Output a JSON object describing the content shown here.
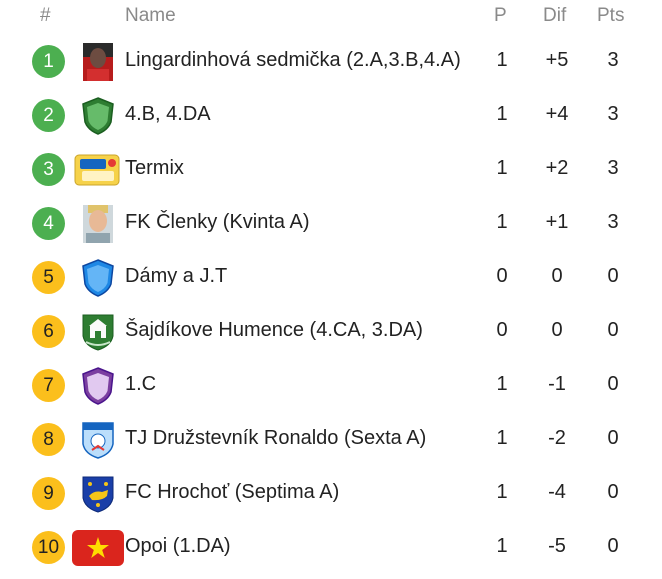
{
  "header": {
    "rank": "#",
    "name": "Name",
    "played": "P",
    "diff": "Dif",
    "points": "Pts"
  },
  "rows": [
    {
      "rank": "1",
      "name": "Lingardinhová sedmička (2.A,3.B,4.A)",
      "played": "1",
      "diff": "+5",
      "points": "3",
      "logo": "player-photo-icon",
      "zone": "green"
    },
    {
      "rank": "2",
      "name": "4.B, 4.DA",
      "played": "1",
      "diff": "+4",
      "points": "3",
      "logo": "green-shield-icon",
      "zone": "green"
    },
    {
      "rank": "3",
      "name": "Termix",
      "played": "1",
      "diff": "+2",
      "points": "3",
      "logo": "termix-logo-icon",
      "zone": "green"
    },
    {
      "rank": "4",
      "name": "FK Členky (Kvinta A)",
      "played": "1",
      "diff": "+1",
      "points": "3",
      "logo": "player-photo-icon",
      "zone": "green"
    },
    {
      "rank": "5",
      "name": "Dámy a J.T",
      "played": "0",
      "diff": "0",
      "points": "0",
      "logo": "blue-shield-icon",
      "zone": "yellow"
    },
    {
      "rank": "6",
      "name": "Šajdíkove Humence (4.CA, 3.DA)",
      "played": "0",
      "diff": "0",
      "points": "0",
      "logo": "town-crest-icon",
      "zone": "yellow"
    },
    {
      "rank": "7",
      "name": "1.C",
      "played": "1",
      "diff": "-1",
      "points": "0",
      "logo": "purple-shield-icon",
      "zone": "yellow"
    },
    {
      "rank": "8",
      "name": "TJ Družstevník Ronaldo (Sexta A)",
      "played": "1",
      "diff": "-2",
      "points": "0",
      "logo": "club-crest-icon",
      "zone": "yellow"
    },
    {
      "rank": "9",
      "name": "FC Hrochoť (Septima A)",
      "played": "1",
      "diff": "-4",
      "points": "0",
      "logo": "coat-of-arms-icon",
      "zone": "yellow"
    },
    {
      "rank": "10",
      "name": "Opoi (1.DA)",
      "played": "1",
      "diff": "-5",
      "points": "0",
      "logo": "vietnam-flag-icon",
      "zone": "yellow"
    }
  ],
  "colors": {
    "green": "#4caf50",
    "yellow": "#fbbf1c",
    "header_text": "#8a8a8a"
  }
}
